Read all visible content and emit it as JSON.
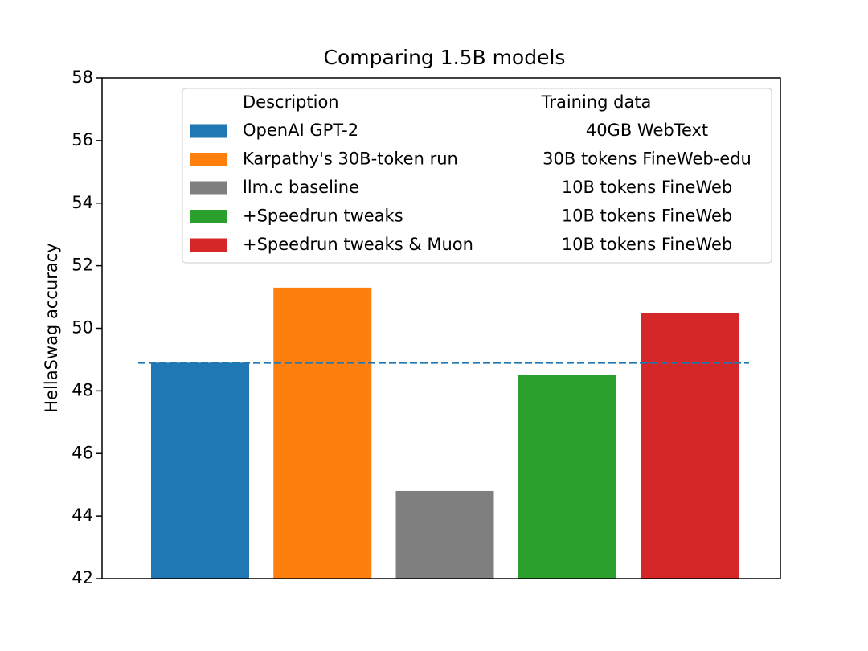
{
  "chart_data": {
    "type": "bar",
    "title": "Comparing 1.5B models",
    "ylabel": "HellaSwag accuracy",
    "ylim": [
      42,
      58
    ],
    "yticks": [
      42,
      44,
      46,
      48,
      50,
      52,
      54,
      56,
      58
    ],
    "grid": false,
    "legend": {
      "loc": "upper right",
      "headers": [
        "Description",
        "Training data"
      ]
    },
    "hline": {
      "value": 48.9,
      "color": "#1f77b4",
      "style": "dashed"
    },
    "series": [
      {
        "name": "OpenAI GPT-2",
        "training_data": "40GB WebText",
        "color": "#1f77b4",
        "values": [
          48.9
        ]
      },
      {
        "name": "Karpathy's 30B-token run",
        "training_data": "30B tokens FineWeb-edu",
        "color": "#ff7f0e",
        "values": [
          51.3
        ]
      },
      {
        "name": "llm.c baseline",
        "training_data": "10B tokens FineWeb",
        "color": "#7f7f7f",
        "values": [
          44.8
        ]
      },
      {
        "name": "+Speedrun tweaks",
        "training_data": "10B tokens FineWeb",
        "color": "#2ca02c",
        "values": [
          48.5
        ]
      },
      {
        "name": "+Speedrun tweaks & Muon",
        "training_data": "10B tokens FineWeb",
        "color": "#d62728",
        "values": [
          50.5
        ]
      }
    ]
  }
}
